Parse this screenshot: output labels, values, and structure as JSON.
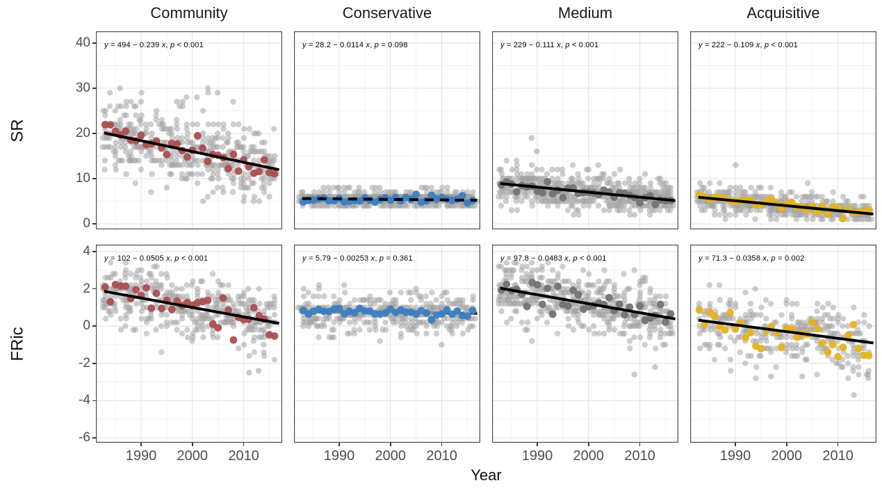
{
  "chart_data": {
    "type": "scatter",
    "title": "",
    "xlabel": "Year",
    "x_ticks": [
      1990,
      2000,
      2010
    ],
    "x_minor": [
      1985,
      1995,
      2005,
      2015
    ],
    "x_range": [
      1981.2,
      2017.5
    ],
    "data_years": {
      "start": 1983,
      "end": 2016
    },
    "rows": [
      {
        "key": "SR",
        "ylabel": "SR",
        "y_ticks": [
          40,
          30,
          20,
          10,
          0
        ],
        "y_minor": [
          35,
          25,
          15,
          5
        ],
        "y_range": [
          -1.23,
          42.6
        ]
      },
      {
        "key": "FRic",
        "ylabel": "FRic",
        "y_ticks": [
          4,
          2,
          0,
          -2,
          -4,
          -6
        ],
        "y_minor": [
          3,
          1,
          -1,
          -3,
          -5
        ],
        "y_range": [
          -6.26,
          4.37
        ]
      }
    ],
    "facets": [
      {
        "label": "Community",
        "color": "#AC4E50"
      },
      {
        "label": "Conservative",
        "color": "#3A7EC1"
      },
      {
        "label": "Medium",
        "color": "#737373"
      },
      {
        "label": "Acquisitive",
        "color": "#E6B31E"
      }
    ],
    "panels": [
      {
        "row": "SR",
        "facet": "Community",
        "equation": "y = 494 − 0.239 x, p < 0.001",
        "intercept": 494,
        "slope": -0.239,
        "p_label": "p < 0.001",
        "line_style": "solid",
        "line_on_top": true,
        "bg_sd": 4.2,
        "mean_sd": 1.4,
        "quant": 1,
        "n_min": 9,
        "n_max": 16,
        "clip": [
          4,
          31
        ],
        "outliers": [
          [
            1986,
            30
          ],
          [
            1997,
            27
          ],
          [
            1998,
            27
          ]
        ]
      },
      {
        "row": "SR",
        "facet": "Conservative",
        "equation": "y = 28.2 − 0.0114 x, p = 0.098",
        "intercept": 28.2,
        "slope": -0.0114,
        "p_label": "p = 0.098",
        "line_style": "dashed",
        "line_on_top": true,
        "bg_sd": 1.1,
        "mean_sd": 0.45,
        "quant": 1,
        "n_min": 8,
        "n_max": 14,
        "clip": [
          3.5,
          8.5
        ],
        "outliers": []
      },
      {
        "row": "SR",
        "facet": "Medium",
        "equation": "y = 229 − 0.111 x, p < 0.001",
        "intercept": 229,
        "slope": -0.111,
        "p_label": "p < 0.001",
        "line_style": "solid",
        "line_on_top": true,
        "bg_sd": 2.3,
        "mean_sd": 0.8,
        "quant": 1,
        "n_min": 9,
        "n_max": 16,
        "clip": [
          2,
          15
        ],
        "outliers": [
          [
            1989,
            19
          ],
          [
            1990,
            16
          ]
        ]
      },
      {
        "row": "SR",
        "facet": "Acquisitive",
        "equation": "y = 222 − 0.109 x, p < 0.001",
        "intercept": 222,
        "slope": -0.109,
        "p_label": "p < 0.001",
        "line_style": "solid",
        "line_on_top": true,
        "bg_sd": 1.7,
        "mean_sd": 0.7,
        "quant": 1,
        "n_min": 8,
        "n_max": 14,
        "clip": [
          1,
          11
        ],
        "outliers": [
          [
            1990,
            13
          ]
        ]
      },
      {
        "row": "FRic",
        "facet": "Community",
        "equation": "y = 102 − 0.0505 x, p < 0.001",
        "intercept": 102,
        "slope": -0.0505,
        "p_label": "p < 0.001",
        "line_style": "solid",
        "line_on_top": true,
        "bg_sd": 0.85,
        "mean_sd": 0.5,
        "quant": 0.2,
        "n_min": 8,
        "n_max": 14,
        "clip": [
          -1.9,
          3.7
        ],
        "outliers": [
          [
            2011,
            -2.5
          ],
          [
            2013,
            -2.4
          ]
        ]
      },
      {
        "row": "FRic",
        "facet": "Conservative",
        "equation": "y = 5.79 − 0.00253 x, p = 0.361",
        "intercept": 5.79,
        "slope": -0.00253,
        "p_label": "p = 0.361",
        "line_style": "dashed",
        "line_on_top": false,
        "bg_sd": 0.6,
        "mean_sd": 0.15,
        "quant": 0.2,
        "n_min": 8,
        "n_max": 13,
        "clip": [
          -1.3,
          2.4
        ],
        "outliers": []
      },
      {
        "row": "FRic",
        "facet": "Medium",
        "equation": "y = 97.8 − 0.0483 x, p < 0.001",
        "intercept": 97.8,
        "slope": -0.0483,
        "p_label": "p < 0.001",
        "line_style": "solid",
        "line_on_top": true,
        "bg_sd": 0.85,
        "mean_sd": 0.4,
        "quant": 0.2,
        "n_min": 9,
        "n_max": 15,
        "clip": [
          -2.0,
          3.6
        ],
        "outliers": [
          [
            2009,
            -2.6
          ],
          [
            2013,
            -2.2
          ]
        ]
      },
      {
        "row": "FRic",
        "facet": "Acquisitive",
        "equation": "y = 71.3 − 0.0358 x, p = 0.002",
        "intercept": 71.3,
        "slope": -0.0358,
        "p_label": "p = 0.002",
        "line_style": "solid",
        "line_on_top": true,
        "bg_sd": 0.95,
        "mean_sd": 0.5,
        "quant": 0.2,
        "n_min": 6,
        "n_max": 12,
        "clip": [
          -2.8,
          2.6
        ],
        "outliers": [
          [
            1997,
            -2.7
          ],
          [
            2003,
            -2.7
          ],
          [
            2013,
            -3.7
          ]
        ]
      }
    ],
    "style": {
      "background": "#FFFFFF",
      "panel_background": "#FFFFFF",
      "panel_border": "#4D4D4D",
      "grid_major": "#E4E4E4",
      "grid_minor": "#F1F1F1",
      "bg_point_color": "#9E9E9E",
      "line_color": "#000000",
      "tick_label_color": "#4D4D4D",
      "title_color": "#1A1A1A"
    }
  }
}
